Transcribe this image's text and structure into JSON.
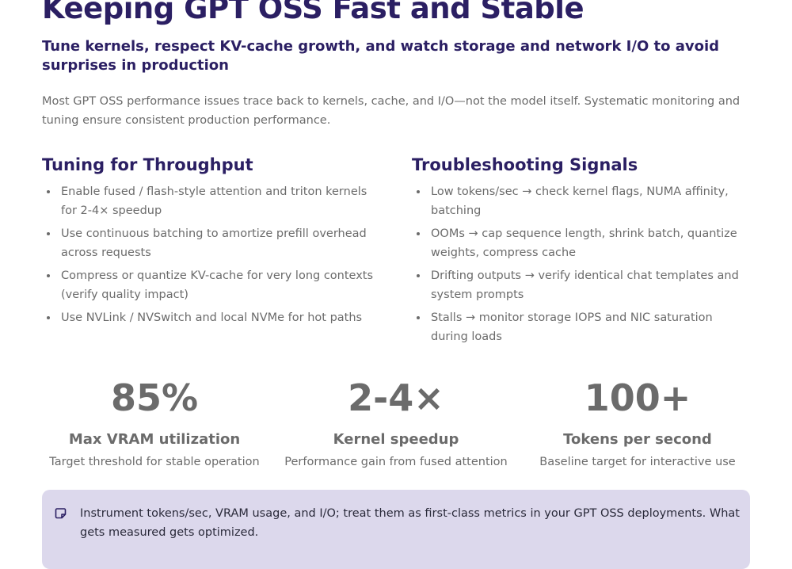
{
  "header": {
    "title": "Keeping GPT OSS Fast and Stable",
    "subtitle": "Tune kernels, respect KV-cache growth, and watch storage and network I/O to avoid surprises in production",
    "intro": "Most GPT OSS performance issues trace back to kernels, cache, and I/O—not the model itself. Systematic monitoring and tuning ensure consistent production performance."
  },
  "columns": [
    {
      "heading": "Tuning for Throughput",
      "items": [
        "Enable fused / flash-style attention and triton kernels for 2-4× speedup",
        "Use continuous batching to amortize prefill overhead across requests",
        "Compress or quantize KV-cache for very long contexts (verify quality impact)",
        "Use NVLink / NVSwitch and local NVMe for hot paths"
      ]
    },
    {
      "heading": "Troubleshooting Signals",
      "items": [
        "Low tokens/sec → check kernel flags, NUMA affinity, batching",
        "OOMs → cap sequence length, shrink batch, quantize weights, compress cache",
        "Drifting outputs → verify identical chat templates and system prompts",
        "Stalls → monitor storage IOPS and NIC saturation during loads"
      ]
    }
  ],
  "stats": [
    {
      "value": "85%",
      "label": "Max VRAM utilization",
      "description": "Target threshold for stable operation"
    },
    {
      "value": "2-4×",
      "label": "Kernel speedup",
      "description": "Performance gain from fused attention"
    },
    {
      "value": "100+",
      "label": "Tokens per second",
      "description": "Baseline target for interactive use"
    }
  ],
  "callout": {
    "text": "Instrument tokens/sec, VRAM usage, and I/O; treat them as first-class metrics in your GPT OSS deployments. What gets measured gets optimized."
  }
}
